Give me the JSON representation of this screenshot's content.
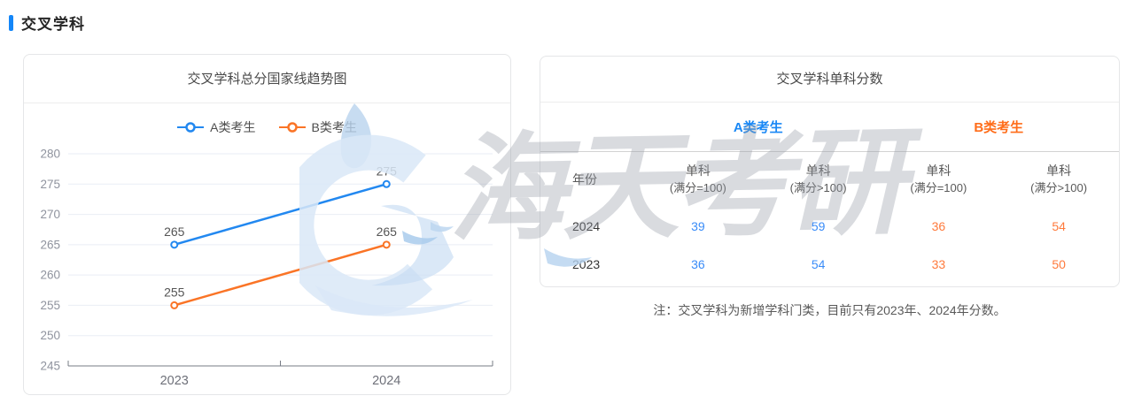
{
  "header": {
    "title": "交叉学科"
  },
  "chart_card": {
    "title": "交叉学科总分国家线趋势图"
  },
  "chart_data": {
    "type": "line",
    "title": "交叉学科总分国家线趋势图",
    "categories": [
      "2023",
      "2024"
    ],
    "series": [
      {
        "name": "A类考生",
        "values": [
          265,
          275
        ],
        "color": "#2288f0"
      },
      {
        "name": "B类考生",
        "values": [
          255,
          265
        ],
        "color": "#fa7426"
      }
    ],
    "xlabel": "",
    "ylabel": "",
    "ylim": [
      245,
      280
    ],
    "ytick_step": 5,
    "grid": true,
    "legend_position": "top",
    "data_labels": true
  },
  "table": {
    "title": "交叉学科单科分数",
    "groups": [
      {
        "label": "A类考生",
        "color": "#1a88f5"
      },
      {
        "label": "B类考生",
        "color": "#ff6d1a"
      }
    ],
    "columns": {
      "year": "年份",
      "cols": [
        {
          "top": "单科",
          "sub": "(满分=100)"
        },
        {
          "top": "单科",
          "sub": "(满分>100)"
        },
        {
          "top": "单科",
          "sub": "(满分=100)"
        },
        {
          "top": "单科",
          "sub": "(满分>100)"
        }
      ]
    },
    "rows": [
      {
        "year": "2024",
        "values": [
          "39",
          "59",
          "36",
          "54"
        ]
      },
      {
        "year": "2023",
        "values": [
          "36",
          "54",
          "33",
          "50"
        ]
      }
    ],
    "note": "注：交叉学科为新增学科门类，目前只有2023年、2024年分数。"
  },
  "watermark": {
    "text": "海天考研"
  },
  "colors": {
    "accent_blue": "#1486f8",
    "grid_line": "#eaeef5",
    "axis_line": "#777c85"
  }
}
